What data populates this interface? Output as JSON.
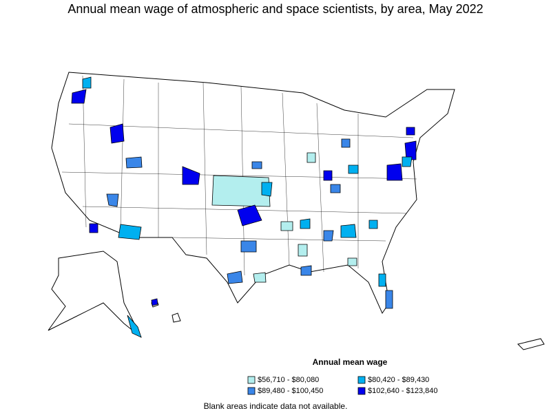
{
  "title": "Annual mean wage of atmospheric and space scientists, by area, May 2022",
  "legend": {
    "title": "Annual mean wage",
    "items": [
      {
        "label": "$56,710 - $80,080",
        "color": "#b3eeee"
      },
      {
        "label": "$80,420 - $89,430",
        "color": "#00b0f0"
      },
      {
        "label": "$89,480 - $100,450",
        "color": "#3a86e8"
      },
      {
        "label": "$102,640 - $123,840",
        "color": "#0000ee"
      }
    ]
  },
  "note": "Blank areas indicate data not available."
}
